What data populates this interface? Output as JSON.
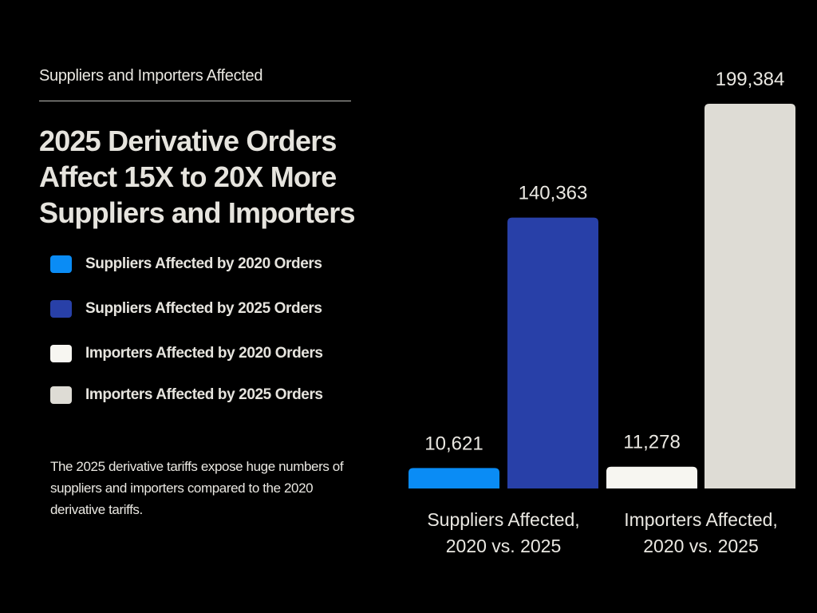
{
  "header": {
    "subtitle": "Suppliers and Importers Affected",
    "title": "2025 Derivative Orders Affect 15X to 20X More Suppliers and Importers"
  },
  "legend": {
    "items": [
      {
        "label": "Suppliers Affected by 2020 Orders",
        "color": "#0a8cf5"
      },
      {
        "label": "Suppliers Affected by 2025 Orders",
        "color": "#2840a8"
      },
      {
        "label": "Importers Affected by 2020 Orders",
        "color": "#f7f6f1"
      },
      {
        "label": "Importers Affected by 2025 Orders",
        "color": "#dedcd5"
      }
    ]
  },
  "note": "The 2025 derivative tariffs expose huge numbers of suppliers and importers compared to the 2020 derivative tariffs.",
  "chart_data": {
    "type": "bar",
    "title": "2025 Derivative Orders Affect 15X to 20X More Suppliers and Importers",
    "categories": [
      "Suppliers Affected, 2020 vs. 2025",
      "Importers Affected, 2020 vs. 2025"
    ],
    "category_lines": [
      [
        "Suppliers Affected,",
        "2020 vs. 2025"
      ],
      [
        "Importers Affected,",
        "2020 vs. 2025"
      ]
    ],
    "bars": [
      {
        "category": 0,
        "series": "Suppliers Affected by 2020 Orders",
        "value": 10621,
        "label": "10,621",
        "color": "#0a8cf5"
      },
      {
        "category": 0,
        "series": "Suppliers Affected by 2025 Orders",
        "value": 140363,
        "label": "140,363",
        "color": "#2840a8"
      },
      {
        "category": 1,
        "series": "Importers Affected by 2020 Orders",
        "value": 11278,
        "label": "11,278",
        "color": "#f7f6f1"
      },
      {
        "category": 1,
        "series": "Importers Affected by 2025 Orders",
        "value": 199384,
        "label": "199,384",
        "color": "#dedcd5"
      }
    ],
    "ylim": [
      0,
      199384
    ],
    "grid": false,
    "legend_position": "left"
  }
}
